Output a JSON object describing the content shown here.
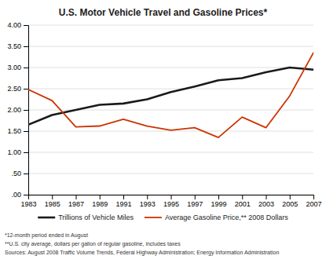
{
  "chart_data": {
    "type": "line",
    "title": "U.S. Motor Vehicle Travel and Gasoline Prices*",
    "x": [
      1983,
      1985,
      1987,
      1989,
      1991,
      1993,
      1995,
      1997,
      1999,
      2001,
      2003,
      2005,
      2007
    ],
    "series": [
      {
        "name": "Trillions of Vehicle Miles",
        "color": "#1a1a1a",
        "values": [
          1.65,
          1.88,
          2.0,
          2.12,
          2.15,
          2.25,
          2.42,
          2.55,
          2.7,
          2.75,
          2.89,
          3.0,
          2.95
        ]
      },
      {
        "name": "Average Gasoline Price,** 2008 Dollars",
        "color": "#cc3300",
        "values": [
          2.48,
          2.22,
          1.6,
          1.62,
          1.78,
          1.62,
          1.52,
          1.58,
          1.35,
          1.83,
          1.58,
          2.33,
          3.35
        ]
      }
    ],
    "xlim": [
      1983,
      2007
    ],
    "xticks": [
      1983,
      1985,
      1987,
      1989,
      1991,
      1993,
      1995,
      1997,
      1999,
      2001,
      2003,
      2005,
      2007
    ],
    "ylim": [
      0.0,
      4.0
    ],
    "yticks": [
      {
        "value": 0.0,
        "label": ".00"
      },
      {
        "value": 0.5,
        "label": ".50"
      },
      {
        "value": 1.0,
        "label": "1.00"
      },
      {
        "value": 1.5,
        "label": "1.50"
      },
      {
        "value": 2.0,
        "label": "2.00"
      },
      {
        "value": 2.5,
        "label": "2.50"
      },
      {
        "value": 3.0,
        "label": "3.00"
      },
      {
        "value": 3.5,
        "label": "3.50"
      },
      {
        "value": 4.0,
        "label": "4.00"
      }
    ],
    "grid": true,
    "legend": "bottom",
    "annotations": [
      "*12-month period ended in August",
      "**U.S. city average, dollars per gallon of regular gasoline, includes taxes",
      "Sources: August 2008 Traffic Volume Trends, Federal Highway Administration; Energy Information Administration"
    ]
  }
}
